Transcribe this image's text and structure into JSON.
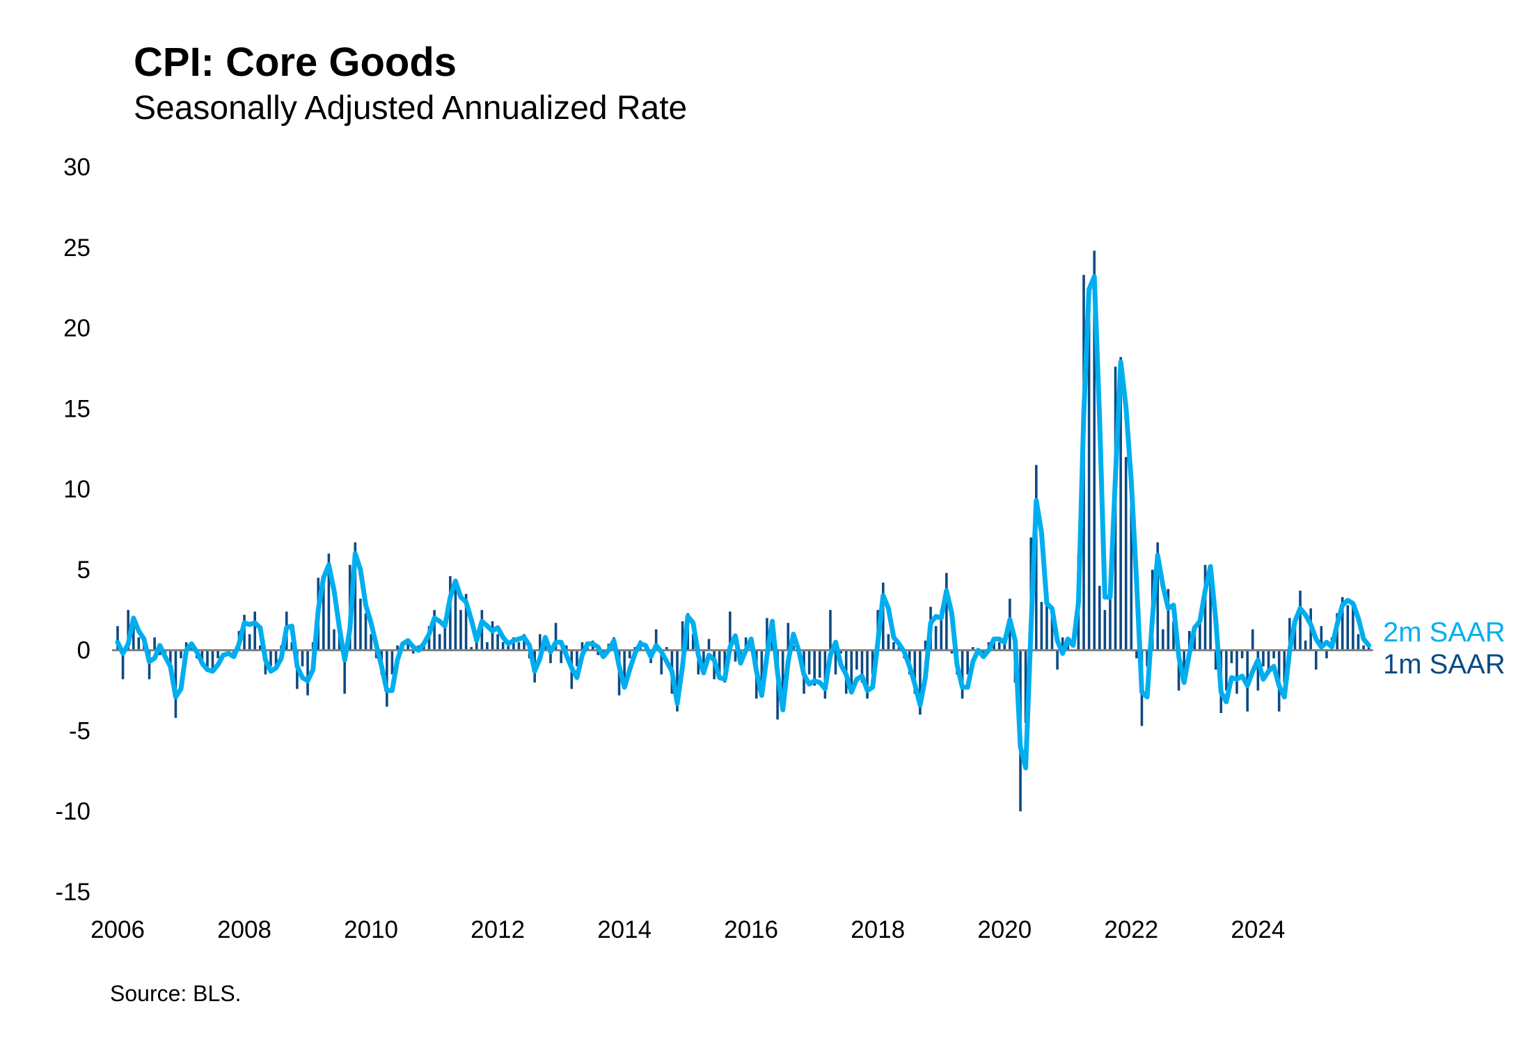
{
  "title": "CPI: Core Goods",
  "subtitle": "Seasonally Adjusted Annualized Rate",
  "source": "Source: BLS.",
  "chart_data": {
    "type": "bar+line",
    "title": "CPI: Core Goods",
    "subtitle": "Seasonally Adjusted Annualized Rate",
    "xlabel": "",
    "ylabel": "",
    "start": "2006-01",
    "frequency": "monthly",
    "ylim": [
      -15,
      30
    ],
    "yticks": [
      "30",
      "25",
      "20",
      "15",
      "10",
      "5",
      "0",
      "-5",
      "-10",
      "-15"
    ],
    "ytick_values": [
      30,
      25,
      20,
      15,
      10,
      5,
      0,
      -5,
      -10,
      -15
    ],
    "xticks": [
      "2006",
      "2008",
      "2010",
      "2012",
      "2014",
      "2016",
      "2018",
      "2020",
      "2022",
      "2024"
    ],
    "grid": false,
    "legend_placement": "right, inline at series end",
    "series": [
      {
        "name": "1m SAAR",
        "type": "bar",
        "color": "#0b4a84",
        "values": [
          1.5,
          -1.8,
          2.5,
          1.5,
          0.8,
          0.5,
          -1.8,
          0.8,
          -0.3,
          -0.5,
          -1.5,
          -4.2,
          -0.5,
          0.5,
          0.3,
          -0.5,
          -1,
          -1.3,
          -1.2,
          -0.5,
          0,
          -0.3,
          -0.5,
          1.2,
          2.2,
          1,
          2.4,
          0.3,
          -1.5,
          -1,
          -1.2,
          0.3,
          2.4,
          0.5,
          -2.4,
          -1,
          -2.8,
          0.5,
          4.5,
          4.5,
          6,
          1.3,
          1.5,
          -2.7,
          5.3,
          6.7,
          3.2,
          2.3,
          1,
          -0.5,
          -1.5,
          -3.5,
          -1.5,
          0.3,
          0.5,
          0.6,
          -0.2,
          0.3,
          0.4,
          1.5,
          2.5,
          1,
          2,
          4.6,
          4,
          2.5,
          3.5,
          0.2,
          1,
          2.5,
          0.5,
          1.8,
          1,
          0.5,
          0.3,
          0.8,
          0.5,
          1,
          -0.5,
          -2,
          1,
          0.6,
          -0.8,
          1.7,
          -0.8,
          0.3,
          -2.4,
          -1,
          0.5,
          0.2,
          0.6,
          -0.3,
          -0.4,
          0.4,
          0.8,
          -2.8,
          -1.8,
          -0.5,
          0.2,
          0.6,
          0,
          -0.8,
          1.3,
          -1.5,
          0.2,
          -2.7,
          -3.8,
          1.8,
          2.3,
          1,
          -1.5,
          -1.3,
          0.7,
          -1.8,
          -1.5,
          -2,
          2.4,
          -0.7,
          -0.8,
          0.8,
          0.5,
          -3,
          -2.5,
          2,
          1.5,
          -4.3,
          -3,
          1.7,
          0.3,
          -0.3,
          -2.7,
          -1.5,
          -2.2,
          -1.7,
          -3,
          2.5,
          -1.5,
          -0.2,
          -2.7,
          -2.4,
          -1.2,
          -2,
          -3,
          -1.5,
          2.5,
          4.2,
          1,
          0.5,
          0.3,
          -0.5,
          -1.5,
          -2.7,
          -4,
          0.6,
          2.7,
          1.5,
          2.5,
          4.8,
          -0.2,
          -1.5,
          -3,
          -1.5,
          0.2,
          -0.2,
          -0.5,
          0.5,
          0.8,
          0.5,
          0.5,
          3.2,
          -2,
          -10,
          -4.5,
          7,
          11.5,
          3,
          2.8,
          2.3,
          -1.2,
          0.8,
          0.5,
          0,
          6,
          23.3,
          21.5,
          24.8,
          4,
          2.5,
          4,
          17.6,
          18.2,
          12,
          9,
          -0.5,
          -4.7,
          -1,
          5,
          6.7,
          1.3,
          3.8,
          1.8,
          -2.5,
          -1.5,
          1.2,
          1.5,
          2,
          5.3,
          5,
          -1.2,
          -3.9,
          -2.5,
          -0.8,
          -2.7,
          -0.5,
          -3.8,
          1.3,
          -2.5,
          -1,
          -1.5,
          -0.5,
          -3.8,
          -2,
          2,
          1.5,
          3.7,
          0.6,
          2.6,
          -1.2,
          1.5,
          -0.5,
          0.8,
          2.3,
          3.3,
          2.8,
          3,
          1,
          0.3,
          0.2
        ]
      },
      {
        "name": "2m SAAR",
        "type": "line",
        "color": "#00aeef",
        "values": [
          0.5,
          -0.2,
          0.4,
          2.0,
          1.2,
          0.7,
          -0.7,
          -0.5,
          0.3,
          -0.4,
          -1.0,
          -2.9,
          -2.4,
          0,
          0.4,
          -0.1,
          -0.8,
          -1.2,
          -1.3,
          -0.9,
          -0.3,
          -0.2,
          -0.4,
          0.4,
          1.7,
          1.6,
          1.7,
          1.4,
          -0.6,
          -1.3,
          -1.1,
          -0.5,
          1.4,
          1.5,
          -1,
          -1.7,
          -1.9,
          -1.2,
          2.5,
          4.5,
          5.3,
          3.7,
          1.4,
          -0.6,
          1.3,
          6,
          5,
          2.8,
          1.7,
          0.3,
          -1,
          -2.5,
          -2.5,
          -0.6,
          0.4,
          0.6,
          0.2,
          0,
          0.4,
          1,
          2,
          1.8,
          1.5,
          3.3,
          4.3,
          3.3,
          3,
          1.9,
          0.6,
          1.8,
          1.5,
          1.2,
          1.4,
          0.8,
          0.4,
          0.6,
          0.7,
          0.8,
          0.3,
          -1.3,
          -0.5,
          0.8,
          -0.1,
          0.5,
          0.5,
          -0.3,
          -1.1,
          -1.7,
          -0.3,
          0.4,
          0.4,
          0.2,
          -0.4,
          0,
          0.6,
          -1,
          -2.3,
          -1.2,
          -0.2,
          0.4,
          0.3,
          -0.4,
          0.3,
          -0.1,
          -0.7,
          -1.3,
          -3.3,
          -1,
          2.1,
          1.7,
          -0.3,
          -1.4,
          -0.3,
          -0.6,
          -1.7,
          -1.8,
          0.2,
          0.9,
          -0.8,
          0,
          0.7,
          -1.3,
          -2.8,
          -0.3,
          1.8,
          -1.4,
          -3.7,
          -0.7,
          1,
          0,
          -1.5,
          -2.1,
          -1.9,
          -2,
          -2.4,
          -0.3,
          0.5,
          -0.9,
          -1.5,
          -2.6,
          -1.8,
          -1.6,
          -2.5,
          -2.3,
          0.5,
          3.4,
          2.6,
          0.8,
          0.4,
          -0.1,
          -1,
          -2.1,
          -3.4,
          -1.7,
          1.7,
          2.1,
          2,
          3.7,
          2.3,
          -0.9,
          -2.3,
          -2.3,
          -0.7,
          0,
          -0.4,
          0,
          0.7,
          0.7,
          0.5,
          1.9,
          0.6,
          -6,
          -7.3,
          1.3,
          9.3,
          7.3,
          2.9,
          2.6,
          0.6,
          -0.2,
          0.7,
          0.3,
          3,
          14.7,
          22.4,
          23.2,
          14.4,
          3.3,
          3.3,
          10.8,
          17.9,
          15.1,
          10.5,
          4.3,
          -2.6,
          -2.9,
          2,
          5.9,
          4,
          2.6,
          2.8,
          -0.4,
          -2,
          -0.2,
          1.4,
          1.8,
          3.7,
          5.2,
          1.9,
          -2.6,
          -3.2,
          -1.7,
          -1.8,
          -1.6,
          -2.2,
          -1.3,
          -0.6,
          -1.8,
          -1.3,
          -1,
          -2.2,
          -2.9,
          0,
          1.8,
          2.6,
          2.2,
          1.6,
          0.7,
          0.2,
          0.5,
          0.2,
          1.6,
          2.8,
          3.1,
          2.9,
          2,
          0.7,
          0.3
        ]
      }
    ]
  }
}
